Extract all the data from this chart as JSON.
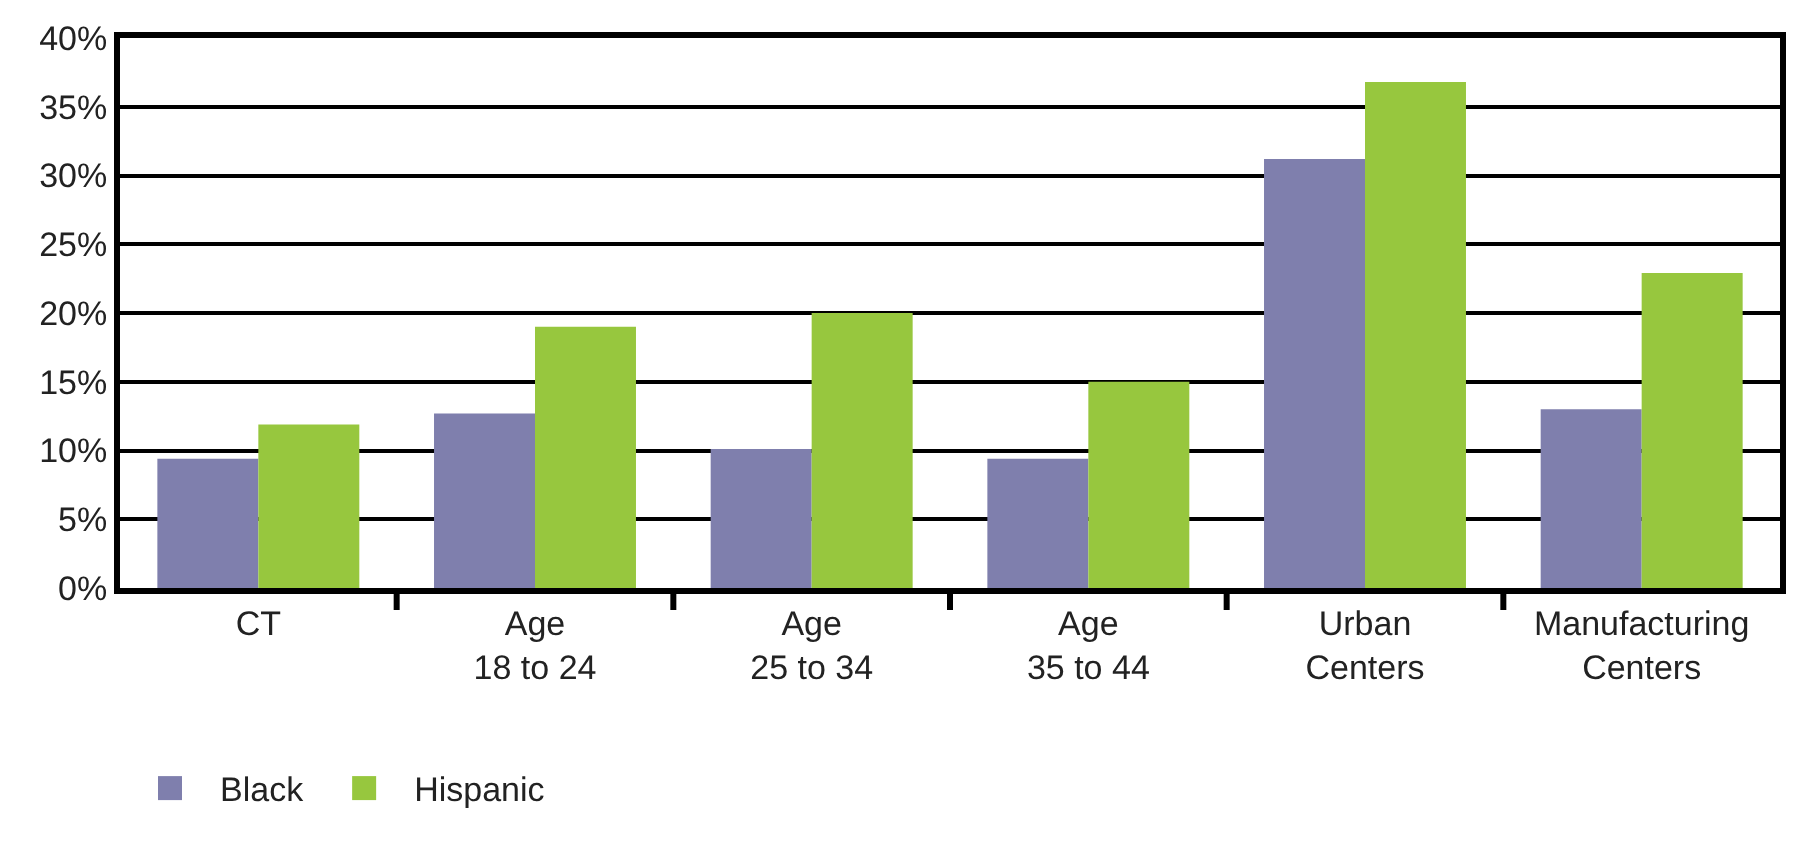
{
  "chart_data": {
    "type": "bar",
    "categories": [
      "CT",
      "Age\n18 to 24",
      "Age\n25 to 34",
      "Age\n35 to 44",
      "Urban\nCenters",
      "Manufacturing\nCenters"
    ],
    "series": [
      {
        "name": "Black",
        "color": "#7f7fad",
        "values": [
          9.4,
          12.7,
          10.1,
          9.4,
          31.2,
          13.0
        ]
      },
      {
        "name": "Hispanic",
        "color": "#97c73e",
        "values": [
          11.9,
          19.0,
          20.0,
          15.0,
          36.8,
          22.9
        ]
      }
    ],
    "ylim": [
      0,
      40
    ],
    "yticks": [
      {
        "value": 0,
        "label": "0%"
      },
      {
        "value": 5,
        "label": "5%"
      },
      {
        "value": 10,
        "label": "10%"
      },
      {
        "value": 15,
        "label": "15%"
      },
      {
        "value": 20,
        "label": "20%"
      },
      {
        "value": 25,
        "label": "25%"
      },
      {
        "value": 30,
        "label": "30%"
      },
      {
        "value": 35,
        "label": "35%"
      },
      {
        "value": 40,
        "label": "40%"
      }
    ],
    "grid": "y",
    "legend": "bottom left"
  }
}
